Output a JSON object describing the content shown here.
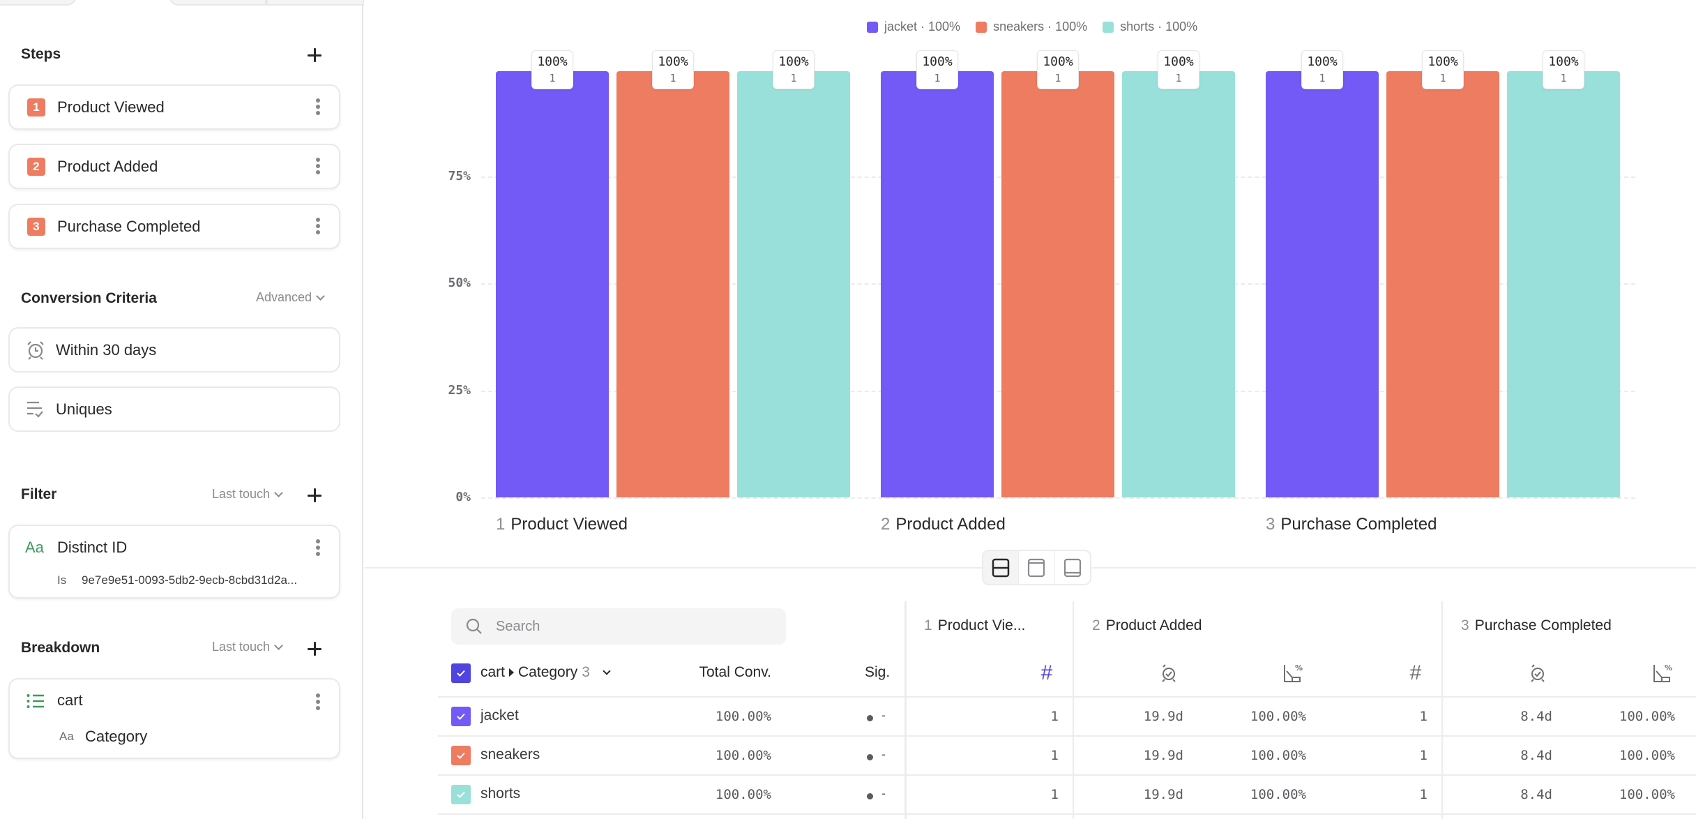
{
  "sidebar": {
    "steps": {
      "title": "Steps",
      "items": [
        {
          "num": "1",
          "label": "Product Viewed"
        },
        {
          "num": "2",
          "label": "Product Added"
        },
        {
          "num": "3",
          "label": "Purchase Completed"
        }
      ]
    },
    "conversion": {
      "title": "Conversion Criteria",
      "mode": "Advanced",
      "window": "Within 30 days",
      "counting": "Uniques"
    },
    "filter": {
      "title": "Filter",
      "attribution": "Last touch",
      "property_type": "Aa",
      "property": "Distinct ID",
      "operator": "Is",
      "value": "9e7e9e51-0093-5db2-9ecb-8cbd31d2a..."
    },
    "breakdown": {
      "title": "Breakdown",
      "attribution": "Last touch",
      "list_name": "cart",
      "property_type": "Aa",
      "property": "Category"
    }
  },
  "colors": {
    "jacket": "#7359f5",
    "sneakers": "#ee7c60",
    "shorts": "#9ae0da",
    "header_checkbox": "#4f44e0",
    "step_badge": "#ee7c60",
    "green_icon": "#3f9a5c"
  },
  "chart_data": {
    "type": "bar",
    "title": "",
    "xlabel": "",
    "ylabel": "",
    "ylim": [
      0,
      100
    ],
    "yticks": [
      "0%",
      "25%",
      "50%",
      "75%"
    ],
    "ytick_values": [
      0,
      25,
      50,
      75
    ],
    "grid": true,
    "legend_position": "top-center",
    "legend": [
      "jacket · 100%",
      "sneakers · 100%",
      "shorts · 100%"
    ],
    "categories": [
      {
        "num": "1",
        "label": "Product Viewed"
      },
      {
        "num": "2",
        "label": "Product Added"
      },
      {
        "num": "3",
        "label": "Purchase Completed"
      }
    ],
    "series": [
      {
        "name": "jacket",
        "values": [
          100,
          100,
          100
        ],
        "counts": [
          1,
          1,
          1
        ],
        "labels": [
          "100%",
          "100%",
          "100%"
        ]
      },
      {
        "name": "sneakers",
        "values": [
          100,
          100,
          100
        ],
        "counts": [
          1,
          1,
          1
        ],
        "labels": [
          "100%",
          "100%",
          "100%"
        ]
      },
      {
        "name": "shorts",
        "values": [
          100,
          100,
          100
        ],
        "counts": [
          1,
          1,
          1
        ],
        "labels": [
          "100%",
          "100%",
          "100%"
        ]
      }
    ]
  },
  "table": {
    "search_placeholder": "Search",
    "group_header": {
      "list": "cart",
      "property": "Category",
      "count": "3"
    },
    "total_conv_header": "Total Conv.",
    "sig_header": "Sig.",
    "step_headers": [
      {
        "num": "1",
        "label": "Product Vie..."
      },
      {
        "num": "2",
        "label": "Product Added"
      },
      {
        "num": "3",
        "label": "Purchase Completed"
      }
    ],
    "rows": [
      {
        "name": "jacket",
        "total_conv": "100.00%",
        "sig": "-",
        "s1_count": "1",
        "s2_time": "19.9d",
        "s2_conv": "100.00%",
        "s2_count": "1",
        "s3_time": "8.4d",
        "s3_conv": "100.00%"
      },
      {
        "name": "sneakers",
        "total_conv": "100.00%",
        "sig": "-",
        "s1_count": "1",
        "s2_time": "19.9d",
        "s2_conv": "100.00%",
        "s2_count": "1",
        "s3_time": "8.4d",
        "s3_conv": "100.00%"
      },
      {
        "name": "shorts",
        "total_conv": "100.00%",
        "sig": "-",
        "s1_count": "1",
        "s2_time": "19.9d",
        "s2_conv": "100.00%",
        "s2_count": "1",
        "s3_time": "8.4d",
        "s3_conv": "100.00%"
      }
    ]
  }
}
